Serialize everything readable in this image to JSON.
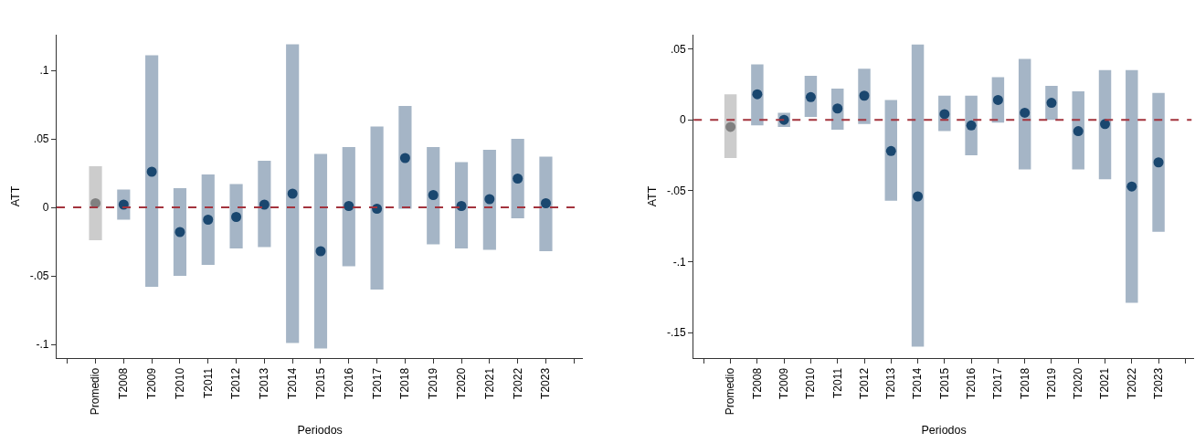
{
  "chart_data": [
    {
      "type": "bar",
      "xlabel": "Periodos",
      "ylabel": "ATT",
      "marker": "circle",
      "categories": [
        null,
        "Promedio",
        "T2008",
        "T2009",
        "T2010",
        "T2011",
        "T2012",
        "T2013",
        "T2014",
        "T2015",
        "T2016",
        "T2017",
        "T2018",
        "T2019",
        "T2020",
        "T2021",
        "T2022",
        "T2023",
        null
      ],
      "ylim": [
        -0.11,
        0.126
      ],
      "yticks": [
        {
          "value": -0.1,
          "label": "-.1"
        },
        {
          "value": -0.05,
          "label": "-.05"
        },
        0,
        {
          "value": 0.05,
          "label": ".05"
        },
        {
          "value": 0.1,
          "label": ".1"
        }
      ],
      "series": [
        {
          "colors": [
            null,
            "#cccccc",
            "#a5b5c6",
            "#a5b5c6",
            "#a5b5c6",
            "#a5b5c6",
            "#a5b5c6",
            "#a5b5c6",
            "#a5b5c6",
            "#a5b5c6",
            "#a5b5c6",
            "#a5b5c6",
            "#a5b5c6",
            "#a5b5c6",
            "#a5b5c6",
            "#a5b5c6",
            "#a5b5c6",
            "#a5b5c6",
            null
          ],
          "base": [
            null,
            -0.024,
            -0.009,
            -0.058,
            -0.05,
            -0.042,
            -0.03,
            -0.029,
            -0.099,
            -0.103,
            -0.043,
            -0.06,
            -0.001,
            -0.027,
            -0.03,
            -0.031,
            -0.008,
            -0.032,
            null
          ],
          "values": [
            null,
            0.054,
            0.022,
            0.169,
            0.064,
            0.066,
            0.047,
            0.063,
            0.218,
            0.142,
            0.087,
            0.119,
            0.075,
            0.071,
            0.063,
            0.073,
            0.058,
            0.069,
            null
          ]
        },
        {
          "type": "scatter",
          "colors": [
            null,
            "#808080",
            "#1a476f",
            "#1a476f",
            "#1a476f",
            "#1a476f",
            "#1a476f",
            "#1a476f",
            "#1a476f",
            "#1a476f",
            "#1a476f",
            "#1a476f",
            "#1a476f",
            "#1a476f",
            "#1a476f",
            "#1a476f",
            "#1a476f",
            "#1a476f",
            null
          ],
          "values": [
            null,
            0.003,
            0.002,
            0.026,
            -0.018,
            -0.009,
            -0.007,
            0.002,
            0.01,
            -0.032,
            0.001,
            -0.001,
            0.036,
            0.009,
            0.001,
            0.006,
            0.021,
            0.003,
            null
          ]
        }
      ],
      "ref_lines": [
        {
          "axis": "y",
          "value": 0,
          "color": "#a3333d",
          "line_style": "dashed"
        }
      ]
    },
    {
      "type": "bar",
      "xlabel": "Periodos",
      "ylabel": "ATT",
      "marker": "circle",
      "categories": [
        null,
        "Promedio",
        "T2008",
        "T2009",
        "T2010",
        "T2011",
        "T2012",
        "T2013",
        "T2014",
        "T2015",
        "T2016",
        "T2017",
        "T2018",
        "T2019",
        "T2020",
        "T2021",
        "T2022",
        "T2023",
        null
      ],
      "ylim": [
        -0.168,
        0.06
      ],
      "yticks": [
        {
          "value": -0.15,
          "label": "-.15"
        },
        {
          "value": -0.1,
          "label": "-.1"
        },
        {
          "value": -0.05,
          "label": "-.05"
        },
        0,
        {
          "value": 0.05,
          "label": ".05"
        }
      ],
      "series": [
        {
          "colors": [
            null,
            "#cccccc",
            "#a5b5c6",
            "#a5b5c6",
            "#a5b5c6",
            "#a5b5c6",
            "#a5b5c6",
            "#a5b5c6",
            "#a5b5c6",
            "#a5b5c6",
            "#a5b5c6",
            "#a5b5c6",
            "#a5b5c6",
            "#a5b5c6",
            "#a5b5c6",
            "#a5b5c6",
            "#a5b5c6",
            "#a5b5c6",
            null
          ],
          "base": [
            null,
            -0.027,
            -0.004,
            -0.005,
            0.002,
            -0.007,
            -0.003,
            -0.057,
            -0.16,
            -0.008,
            -0.025,
            -0.002,
            -0.035,
            0.0,
            -0.035,
            -0.042,
            -0.129,
            -0.079,
            null
          ],
          "values": [
            null,
            0.045,
            0.043,
            0.01,
            0.029,
            0.029,
            0.039,
            0.071,
            0.213,
            0.025,
            0.042,
            0.032,
            0.078,
            0.024,
            0.055,
            0.077,
            0.164,
            0.098,
            null
          ]
        },
        {
          "type": "scatter",
          "colors": [
            null,
            "#808080",
            "#1a476f",
            "#1a476f",
            "#1a476f",
            "#1a476f",
            "#1a476f",
            "#1a476f",
            "#1a476f",
            "#1a476f",
            "#1a476f",
            "#1a476f",
            "#1a476f",
            "#1a476f",
            "#1a476f",
            "#1a476f",
            "#1a476f",
            "#1a476f",
            null
          ],
          "values": [
            null,
            -0.005,
            0.018,
            0.0,
            0.016,
            0.008,
            0.017,
            -0.022,
            -0.054,
            0.004,
            -0.004,
            0.014,
            0.005,
            0.012,
            -0.008,
            -0.003,
            -0.047,
            -0.03,
            null
          ]
        }
      ],
      "ref_lines": [
        {
          "axis": "y",
          "value": 0,
          "color": "#a3333d",
          "line_style": "dashed"
        }
      ]
    }
  ]
}
